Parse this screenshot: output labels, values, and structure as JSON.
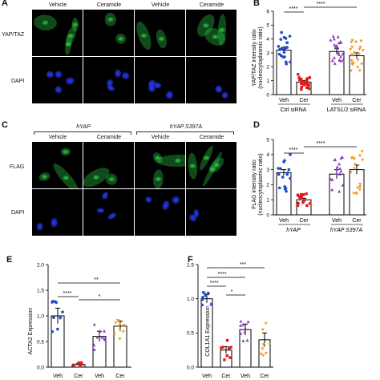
{
  "panels": {
    "A": {
      "letter": "A",
      "conditions": [
        "Vehicle",
        "Ceramide",
        "Vehicle",
        "Ceramide"
      ],
      "rows": [
        "YAP/TAZ",
        "DAPI"
      ]
    },
    "B": {
      "letter": "B",
      "significance": [
        "****",
        "****"
      ],
      "tick_labels": [
        "Veh",
        "Cer",
        "Veh",
        "Cer"
      ],
      "group_labels": [
        "Ctrl siRNA",
        "LATS1/2 siRNA"
      ]
    },
    "C": {
      "letter": "C",
      "groups": [
        "hYAP",
        "hYAP S397A"
      ],
      "conditions": [
        "Vehicle",
        "Ceramide",
        "Vehicle",
        "Ceramide"
      ],
      "rows": [
        "FLAG",
        "DAPI"
      ]
    },
    "D": {
      "letter": "D",
      "significance": [
        "****",
        "****"
      ],
      "tick_labels": [
        "Veh",
        "Cer",
        "Veh",
        "Cer"
      ],
      "group_labels": [
        "hYAP",
        "hYAP S397A"
      ]
    },
    "E": {
      "letter": "E",
      "significance": [
        "****",
        "*",
        "**"
      ],
      "tick_labels": [
        "Veh",
        "Cer",
        "Veh",
        "Cer"
      ]
    },
    "F": {
      "letter": "F",
      "significance": [
        "****",
        "****",
        "*",
        "***"
      ],
      "tick_labels": [
        "Veh",
        "Cer",
        "Veh",
        "Cer"
      ]
    }
  },
  "colors": {
    "blue": "#1f4fbf",
    "red": "#e01a1a",
    "purple": "#8e3fbf",
    "orange": "#f39a1e",
    "green_stain": "#2fd04a",
    "blue_stain": "#2a3cff"
  },
  "chart_data": [
    {
      "id": "B",
      "type": "bar",
      "ylabel": "YAP/TAZ intensity ratio\n(nucleocytoplasmic ratio)",
      "categories": [
        "Veh",
        "Cer",
        "Veh",
        "Cer"
      ],
      "groups": [
        "Ctrl siRNA",
        "LATS1/2 siRNA"
      ],
      "values": [
        3.2,
        0.9,
        3.1,
        2.8
      ],
      "errors": [
        0.2,
        0.1,
        0.2,
        0.2
      ],
      "yticks": [
        0,
        1,
        2,
        3,
        4,
        5,
        6
      ],
      "ylim": [
        0,
        6
      ]
    },
    {
      "id": "D",
      "type": "bar",
      "ylabel": "FLAG intensity ratio\n(nucleocytoplasmic ratio)",
      "categories": [
        "Veh",
        "Cer",
        "Veh",
        "Cer"
      ],
      "groups": [
        "hYAP",
        "hYAP S397A"
      ],
      "values": [
        2.8,
        1.0,
        2.7,
        3.0
      ],
      "errors": [
        0.2,
        0.1,
        0.3,
        0.3
      ],
      "yticks": [
        0,
        1,
        2,
        3,
        4,
        5
      ],
      "ylim": [
        0,
        5
      ]
    },
    {
      "id": "E",
      "type": "bar",
      "ylabel": "ACTA2 Expression",
      "categories": [
        "Veh",
        "Cer",
        "Veh",
        "Cer"
      ],
      "values": [
        1.0,
        0.05,
        0.6,
        0.8
      ],
      "errors": [
        0.15,
        0.02,
        0.1,
        0.1
      ],
      "yticks": [
        0.0,
        0.5,
        1.0,
        1.5,
        2.0
      ],
      "ylim": [
        0,
        2.0
      ]
    },
    {
      "id": "F",
      "type": "bar",
      "ylabel": "COL1A1 Expression",
      "categories": [
        "Veh",
        "Cer",
        "Veh",
        "Cer"
      ],
      "values": [
        1.0,
        0.25,
        0.55,
        0.4
      ],
      "errors": [
        0.06,
        0.05,
        0.08,
        0.1
      ],
      "yticks": [
        0.0,
        0.5,
        1.0,
        1.5
      ],
      "ylim": [
        0,
        1.5
      ]
    }
  ]
}
